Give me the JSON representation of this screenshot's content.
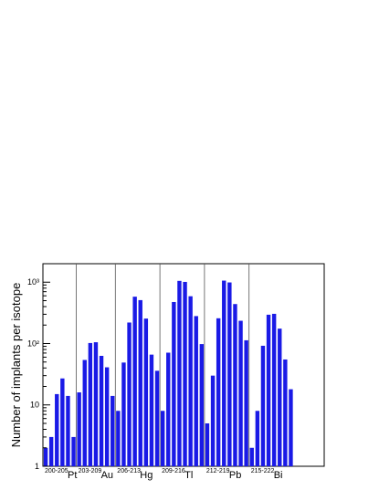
{
  "chart_data": {
    "type": "bar",
    "title": "",
    "xlabel": "",
    "ylabel": "Number of implants per isotope",
    "yscale": "log",
    "ylim": [
      1,
      2000
    ],
    "y_ticks": [
      {
        "value": 1,
        "label": "1"
      },
      {
        "value": 10,
        "label": "10"
      },
      {
        "value": 100,
        "label": "10²"
      },
      {
        "value": 1000,
        "label": "10³"
      }
    ],
    "bar_color": "#1a1ae6",
    "groups": [
      {
        "element": "Pt",
        "range": "200-205",
        "values": [
          2,
          3,
          15,
          27,
          14,
          3
        ]
      },
      {
        "element": "Au",
        "range": "203-209",
        "values": [
          16,
          54,
          102,
          105,
          63,
          41,
          14
        ]
      },
      {
        "element": "Hg",
        "range": "206-213",
        "values": [
          8,
          49,
          220,
          580,
          510,
          255,
          66,
          36
        ]
      },
      {
        "element": "Tl",
        "range": "209-216",
        "values": [
          8,
          71,
          475,
          1050,
          1010,
          590,
          280,
          98
        ]
      },
      {
        "element": "Pb",
        "range": "212-219",
        "values": [
          5,
          30,
          258,
          1060,
          990,
          440,
          235,
          113
        ]
      },
      {
        "element": "Bi",
        "range": "215-222",
        "values": [
          2,
          8,
          92,
          295,
          305,
          175,
          55,
          18
        ]
      }
    ]
  }
}
